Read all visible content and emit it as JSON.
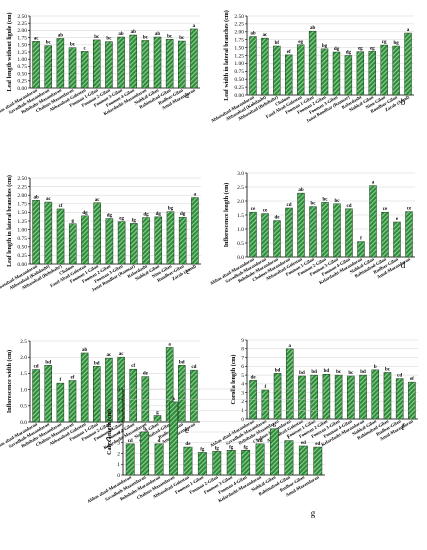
{
  "chart_data": [
    {
      "id": "a",
      "type": "bar",
      "panel_label": "a",
      "ylabel": "Leaf length without ligule (cm)",
      "ylim": [
        0,
        2.5
      ],
      "yticks": [
        "0.00",
        "0.25",
        "0.50",
        "0.75",
        "1.00",
        "1.25",
        "1.50",
        "1.75",
        "2.00",
        "2.25",
        "2.50"
      ],
      "categories": [
        "Abbas abad-Mazandaran",
        "Savadkoh-Mazandaran",
        "Behshahr-Mazandaran",
        "Chalous-Mazandaran",
        "Abbasabad-Golestan",
        "Fooman 1-Gilan",
        "Fooman 2-Gilan",
        "Fooman 3-Gilan",
        "Fooman 4-Gilan",
        "Kelardasht-Mazandaran",
        "Siahkal-Gilan",
        "Rahimabad-Gilan",
        "Rudbar-Gilan",
        "Amol-Mazandaran"
      ],
      "values": [
        1.62,
        1.47,
        1.72,
        1.4,
        1.27,
        1.67,
        1.61,
        1.77,
        1.84,
        1.65,
        1.77,
        1.69,
        1.63,
        2.05
      ],
      "significance": [
        "ac",
        "bc",
        "ab",
        "bc",
        "c",
        "bc",
        "bc",
        "ab",
        "ab",
        "bc",
        "ab",
        "bc",
        "bc",
        "a"
      ]
    },
    {
      "id": "b",
      "type": "bar",
      "panel_label": "b",
      "ylabel": "Leaf width in lateral branches (cm)",
      "ylim": [
        0,
        2.5
      ],
      "yticks": [
        "0.00",
        "0.25",
        "0.50",
        "0.75",
        "1.00",
        "1.25",
        "1.50",
        "1.75",
        "2.00",
        "2.25",
        "2.50"
      ],
      "categories": [
        "Abbasabad-Mazandaran",
        "Abbasabad (Kohdasht)",
        "Abbasabad (Behshahr)",
        "Chalous",
        "Fasel Abad-Golestan",
        "Fooman 1-Gilan",
        "Fooman 2-Gilan",
        "Fooman 3-Gilan",
        "Janat Roodbar (Ramsar)",
        "Kelardasht",
        "Siahkal-Gilan",
        "Nino-Gilan",
        "Roudbar-Gilan",
        "Zarab (Amol)"
      ],
      "values": [
        1.85,
        1.8,
        1.55,
        1.27,
        1.59,
        2.02,
        1.46,
        1.36,
        1.25,
        1.37,
        1.38,
        1.58,
        1.55,
        1.96
      ],
      "significance": [
        "ab",
        "ac",
        "bf",
        "ef",
        "eg",
        "ab",
        "bg",
        "dg",
        "dg",
        "eg",
        "eg",
        "cg",
        "bg",
        "a"
      ]
    },
    {
      "id": "c",
      "type": "bar",
      "panel_label": "c",
      "ylabel": "Leaf length in lateral branches (cm)",
      "ylim": [
        0,
        2.5
      ],
      "yticks": [
        "0.00",
        "0.25",
        "0.50",
        "0.75",
        "1.00",
        "1.25",
        "1.50",
        "1.75",
        "2.00",
        "2.25",
        "2.50"
      ],
      "categories": [
        "Abbasabad-Mazandaran",
        "Abbasabad (Kohdasht)",
        "Abbasabad (Behshahr)",
        "Chalous",
        "Fasel Abad-Golestan",
        "Fooman 1-Gilan",
        "Fooman 2-Gilan",
        "Fooman 3-Gilan",
        "Janat Roodbar (Ramsar)",
        "Kelardasht",
        "Siahkal-Gilan",
        "Nino-Gilan",
        "Roudbar-Gilan",
        "Zarab (Amol)"
      ],
      "values": [
        1.85,
        1.8,
        1.6,
        1.17,
        1.4,
        1.78,
        1.32,
        1.23,
        1.18,
        1.35,
        1.37,
        1.52,
        1.36,
        1.93
      ],
      "significance": [
        "ab",
        "ac",
        "cf",
        "g",
        "dg",
        "ac",
        "dg",
        "eg",
        "fg",
        "dg",
        "dg",
        "bg",
        "dg",
        "a"
      ]
    },
    {
      "id": "d",
      "type": "bar",
      "panel_label": "d",
      "ylabel": "Inflorescence length (cm)",
      "ylim": [
        0,
        3
      ],
      "yticks": [
        "0.0",
        "0.5",
        "1.0",
        "1.5",
        "2.0",
        "2.5",
        "3.0"
      ],
      "categories": [
        "Abbas abad-Mazandaran",
        "Savadkoh-Mazandaran",
        "Behshahr-Mazandaran",
        "Chalous-Mazandaran",
        "Abbasabad-Golestan",
        "Fooman 1-Gilan",
        "Fooman 2-Gilan",
        "Fooman 3-Gilan",
        "Fooman 4-Gilan",
        "Kelardasht-Mazandaran",
        "Siahkal-Gilan",
        "Rahimabad-Gilan",
        "Rudbar-Gilan",
        "Amol-Mazandaran"
      ],
      "values": [
        1.6,
        1.55,
        1.3,
        1.75,
        2.28,
        1.8,
        1.95,
        1.9,
        1.72,
        0.55,
        2.55,
        1.6,
        1.25,
        1.62
      ],
      "significance": [
        "ce",
        "ce",
        "de",
        "cd",
        "ab",
        "bc",
        "bc",
        "bc",
        "cd",
        "f",
        "a",
        "ce",
        "e",
        "ce"
      ]
    },
    {
      "id": "e",
      "type": "bar",
      "panel_label": "e",
      "ylabel": "Inflorescence width (cm)",
      "ylim": [
        0,
        2.5
      ],
      "yticks": [
        "0.0",
        "0.5",
        "1.0",
        "1.5",
        "2.0",
        "2.5"
      ],
      "categories": [
        "Abbas abad-Mazandaran",
        "Savadkoh-Mazandaran",
        "Behshahr-Mazandaran",
        "Chalous-Mazandaran",
        "Abbasabad-Golestan",
        "Fooman 1-Gilan",
        "Fooman 2-Gilan",
        "Fooman 3-Gilan",
        "Fooman 4-Gilan",
        "Kelardasht-Mazandaran",
        "Siahkal-Gilan",
        "Rahimabad-Gilan",
        "Rudbar-Gilan",
        "Amol-Mazandaran"
      ],
      "values": [
        1.62,
        1.75,
        1.2,
        1.28,
        2.13,
        1.72,
        1.97,
        2.0,
        1.63,
        1.4,
        0.2,
        2.3,
        1.75,
        1.6
      ],
      "significance": [
        "cd",
        "bd",
        "f",
        "ef",
        "ab",
        "bd",
        "ac",
        "ac",
        "cf",
        "de",
        "g",
        "a",
        "bd",
        "cd"
      ]
    },
    {
      "id": "f",
      "type": "bar",
      "panel_label": "f",
      "ylabel": "Corolla length (cm)",
      "ylim": [
        0,
        9
      ],
      "yticks": [
        "0",
        "1",
        "2",
        "3",
        "4",
        "5",
        "6",
        "7",
        "8",
        "9"
      ],
      "categories": [
        "Abbas abad-Mazandaran",
        "Savadkoh-Mazandaran",
        "Behshahr-Mazandaran",
        "Chalous-Mazandaran",
        "Abbasabad-Golestan",
        "Fooman 1-Gilan",
        "Fooman 2-Gilan",
        "Fooman 3-Gilan",
        "Fooman 4-Gilan",
        "Kelardasht-Mazandaran",
        "Siahkal-Gilan",
        "Rahimabad-Gilan",
        "Rudbar-Gilan",
        "Amol-Mazandaran"
      ],
      "values": [
        4.4,
        3.3,
        5.2,
        8.0,
        4.9,
        5.0,
        5.1,
        5.0,
        4.9,
        5.0,
        5.6,
        5.3,
        4.6,
        4.2
      ],
      "significance": [
        "de",
        "f",
        "bd",
        "a",
        "bd",
        "bd",
        "bd",
        "bc",
        "bc",
        "bd",
        "b",
        "bc",
        "cd",
        "ef"
      ]
    },
    {
      "id": "g",
      "type": "bar",
      "panel_label": "g",
      "ylabel": "Calyx length (cm)",
      "ylim": [
        0,
        8
      ],
      "yticks": [
        "0",
        "1",
        "2",
        "3",
        "4",
        "5",
        "6",
        "7",
        "8"
      ],
      "categories": [
        "Abbas abad-Mazandaran",
        "Savadkoh-Mazandaran",
        "Behshahr-Mazandaran",
        "Chalous-Mazandaran",
        "Abbasabad-Golestan",
        "Fooman 1-Gilan",
        "Fooman 2-Gilan",
        "Fooman 3-Gilan",
        "Fooman 4-Gilan",
        "Kelardasht-Mazandaran",
        "Siahkal-Gilan",
        "Rahimabad-Gilan",
        "Rudbar-Gilan",
        "Amol-Mazandaran"
      ],
      "values": [
        2.9,
        4.0,
        2.9,
        6.8,
        2.6,
        2.1,
        2.2,
        2.3,
        2.3,
        2.9,
        4.3,
        3.2,
        2.7,
        2.6
      ],
      "significance": [
        "cd",
        "b",
        "d",
        "a",
        "de",
        "fg",
        "fg",
        "fg",
        "fg",
        "cd",
        "b",
        "c",
        "ed",
        "ed"
      ]
    }
  ],
  "colors": {
    "bar_fill": "#2e8b3e",
    "bar_stripe": "#8fd08c",
    "bar_edge": "#1a3a1a",
    "grid": "#c8c8c8",
    "axis": "#000000"
  }
}
